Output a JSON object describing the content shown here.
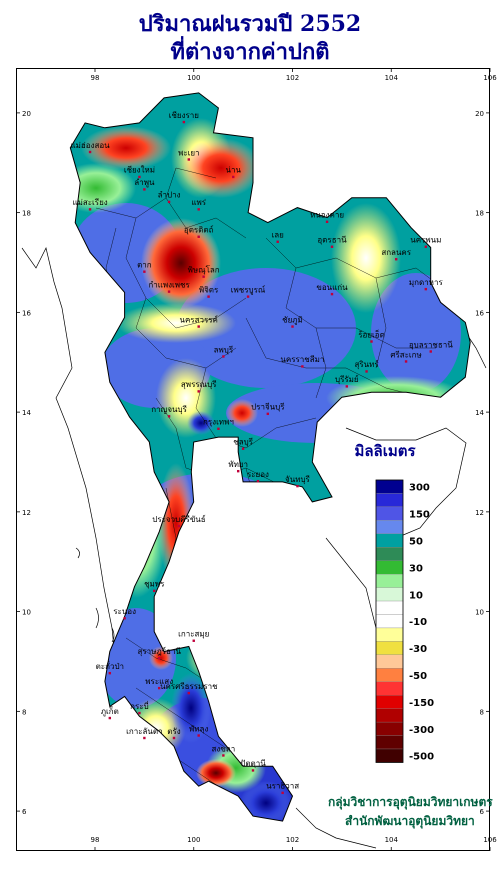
{
  "title_line1": "ปริมาณฝนรวมปี  2552",
  "title_line2": "ที่ต่างจากค่าปกติ",
  "axes": {
    "x_ticks": [
      "98",
      "100",
      "102",
      "104",
      "106"
    ],
    "y_ticks": [
      "20",
      "18",
      "16",
      "14",
      "12",
      "10",
      "8",
      "6"
    ]
  },
  "legend": {
    "unit_label": "มิลลิเมตร",
    "entries": [
      {
        "label": "300",
        "color": "#000090"
      },
      {
        "label": "",
        "color": "#2828d8"
      },
      {
        "label": "150",
        "color": "#4f55e6"
      },
      {
        "label": "",
        "color": "#6688ee"
      },
      {
        "label": "50",
        "color": "#00a0a0"
      },
      {
        "label": "",
        "color": "#2e8b57"
      },
      {
        "label": "30",
        "color": "#33bb33"
      },
      {
        "label": "",
        "color": "#98f098"
      },
      {
        "label": "10",
        "color": "#d8f8d8"
      },
      {
        "label": "",
        "color": "#ffffff"
      },
      {
        "label": "-10",
        "color": "#ffffff"
      },
      {
        "label": "",
        "color": "#ffff99"
      },
      {
        "label": "-30",
        "color": "#f0e040"
      },
      {
        "label": "",
        "color": "#ffc898"
      },
      {
        "label": "-50",
        "color": "#ff8040"
      },
      {
        "label": "",
        "color": "#ff3333"
      },
      {
        "label": "-150",
        "color": "#e00000"
      },
      {
        "label": "",
        "color": "#b00000"
      },
      {
        "label": "-300",
        "color": "#880000"
      },
      {
        "label": "",
        "color": "#600000"
      },
      {
        "label": "-500",
        "color": "#400000"
      }
    ]
  },
  "place_labels": [
    {
      "name": "เชียงราย",
      "lon": 99.8,
      "lat": 19.9
    },
    {
      "name": "แม่ฮ่องสอน",
      "lon": 97.9,
      "lat": 19.3
    },
    {
      "name": "พะเยา",
      "lon": 99.9,
      "lat": 19.15
    },
    {
      "name": "เชียงใหม่",
      "lon": 98.9,
      "lat": 18.8
    },
    {
      "name": "น่าน",
      "lon": 100.8,
      "lat": 18.8
    },
    {
      "name": "ลำพูน",
      "lon": 99.0,
      "lat": 18.55
    },
    {
      "name": "ลำปาง",
      "lon": 99.5,
      "lat": 18.3
    },
    {
      "name": "แพร่",
      "lon": 100.1,
      "lat": 18.15
    },
    {
      "name": "แม่สะเรียง",
      "lon": 97.9,
      "lat": 18.15
    },
    {
      "name": "อุตรดิตถ์",
      "lon": 100.1,
      "lat": 17.6
    },
    {
      "name": "หนองคาย",
      "lon": 102.7,
      "lat": 17.9
    },
    {
      "name": "นครพนม",
      "lon": 104.7,
      "lat": 17.4
    },
    {
      "name": "อุดรธานี",
      "lon": 102.8,
      "lat": 17.4
    },
    {
      "name": "เลย",
      "lon": 101.7,
      "lat": 17.5
    },
    {
      "name": "สกลนคร",
      "lon": 104.1,
      "lat": 17.15
    },
    {
      "name": "ตาก",
      "lon": 99.0,
      "lat": 16.9
    },
    {
      "name": "พิษณุโลก",
      "lon": 100.2,
      "lat": 16.8
    },
    {
      "name": "มุกดาหาร",
      "lon": 104.7,
      "lat": 16.55
    },
    {
      "name": "กำแพงเพชร",
      "lon": 99.5,
      "lat": 16.5
    },
    {
      "name": "พิจิตร",
      "lon": 100.3,
      "lat": 16.4
    },
    {
      "name": "ขอนแก่น",
      "lon": 102.8,
      "lat": 16.45
    },
    {
      "name": "เพชรบูรณ์",
      "lon": 101.1,
      "lat": 16.4
    },
    {
      "name": "นครสวรรค์",
      "lon": 100.1,
      "lat": 15.8
    },
    {
      "name": "ชัยภูมิ",
      "lon": 102.0,
      "lat": 15.8
    },
    {
      "name": "อุบลราชธานี",
      "lon": 104.8,
      "lat": 15.3
    },
    {
      "name": "ลพบุรี",
      "lon": 100.6,
      "lat": 15.2
    },
    {
      "name": "ร้อยเอ็ด",
      "lon": 103.6,
      "lat": 15.5
    },
    {
      "name": "นครราชสีมา",
      "lon": 102.2,
      "lat": 15.0
    },
    {
      "name": "สุรินทร์",
      "lon": 103.5,
      "lat": 14.9
    },
    {
      "name": "ศรีสะเกษ",
      "lon": 104.3,
      "lat": 15.1
    },
    {
      "name": "สุพรรณบุรี",
      "lon": 100.1,
      "lat": 14.5
    },
    {
      "name": "บุรีรัมย์",
      "lon": 103.1,
      "lat": 14.6
    },
    {
      "name": "กาญจนบุรี",
      "lon": 99.5,
      "lat": 14.0
    },
    {
      "name": "ปราจีนบุรี",
      "lon": 101.5,
      "lat": 14.05
    },
    {
      "name": "กรุงเทพฯ",
      "lon": 100.5,
      "lat": 13.75
    },
    {
      "name": "ชลบุรี",
      "lon": 101.0,
      "lat": 13.35
    },
    {
      "name": "พัทยา",
      "lon": 100.9,
      "lat": 12.9
    },
    {
      "name": "ระยอง",
      "lon": 101.3,
      "lat": 12.7
    },
    {
      "name": "จันทบุรี",
      "lon": 102.1,
      "lat": 12.6
    },
    {
      "name": "ประจวบคีรีขันธ์",
      "lon": 99.7,
      "lat": 11.8
    },
    {
      "name": "ชุมพร",
      "lon": 99.2,
      "lat": 10.5
    },
    {
      "name": "ระนอง",
      "lon": 98.6,
      "lat": 9.95
    },
    {
      "name": "เกาะสมุย",
      "lon": 100.0,
      "lat": 9.5
    },
    {
      "name": "สุราษฎร์ธานี",
      "lon": 99.3,
      "lat": 9.15
    },
    {
      "name": "ตะกั่วป่า",
      "lon": 98.3,
      "lat": 8.85
    },
    {
      "name": "พระแสง",
      "lon": 99.3,
      "lat": 8.55
    },
    {
      "name": "นครศรีธรรมราช",
      "lon": 99.9,
      "lat": 8.45
    },
    {
      "name": "ภูเก็ต",
      "lon": 98.3,
      "lat": 7.95
    },
    {
      "name": "กระบี่",
      "lon": 98.9,
      "lat": 8.05
    },
    {
      "name": "เกาะลันตา",
      "lon": 99.0,
      "lat": 7.55
    },
    {
      "name": "ตรัง",
      "lon": 99.6,
      "lat": 7.55
    },
    {
      "name": "พัทลุง",
      "lon": 100.1,
      "lat": 7.6
    },
    {
      "name": "สงขลา",
      "lon": 100.6,
      "lat": 7.2
    },
    {
      "name": "ปัตตานี",
      "lon": 101.2,
      "lat": 6.9
    },
    {
      "name": "นราธิวาส",
      "lon": 101.8,
      "lat": 6.45
    }
  ],
  "credit_line1": "กลุ่มวิชาการอุตุนิยมวิทยาเกษตร",
  "credit_line2": "สำนักพัฒนาอุตุนิยมวิทยา",
  "map_colors": {
    "sea": "#ffffff",
    "land_neighbor": "#ffffff",
    "border": "#000000"
  }
}
